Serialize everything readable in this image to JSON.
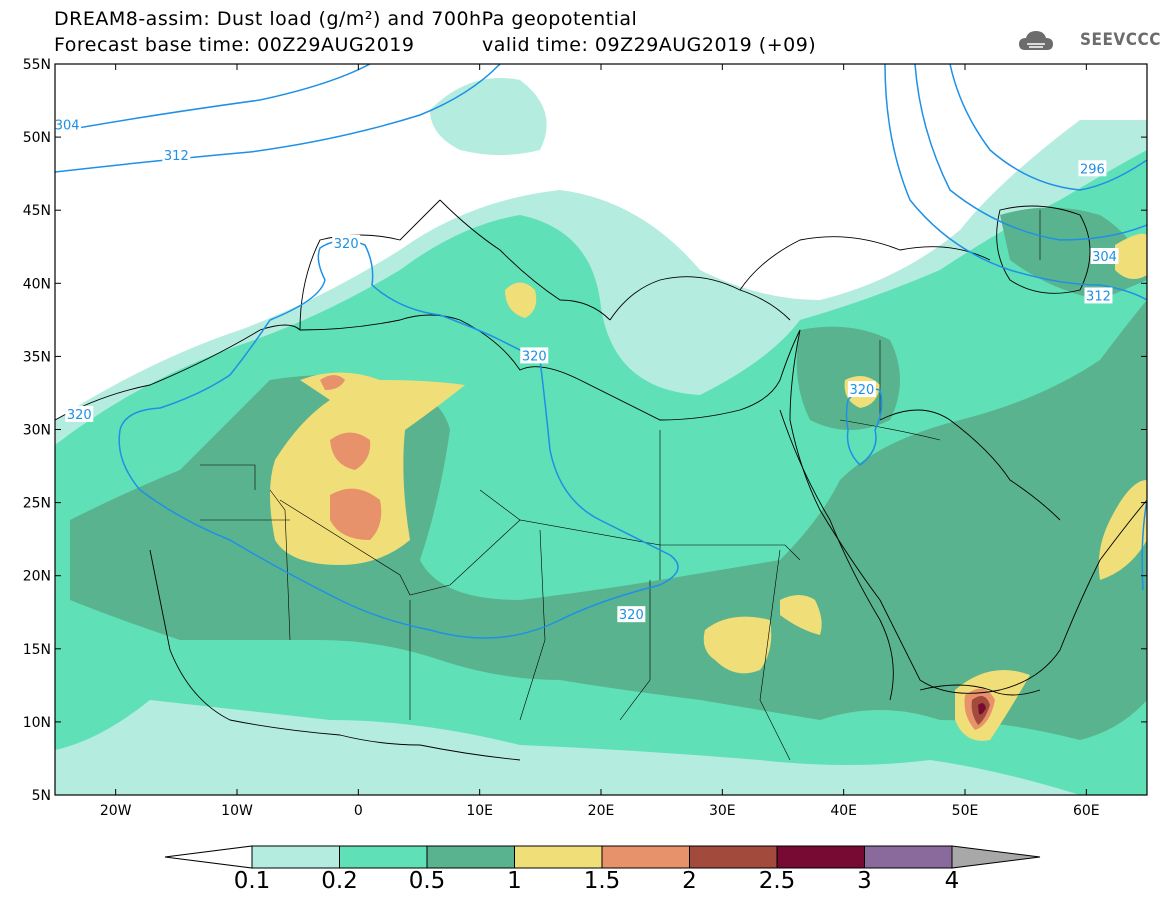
{
  "header": {
    "title_line1": "DREAM8-assim: Dust load (g/m²) and 700hPa geopotential",
    "title_line2_left": "Forecast base time: 00Z29AUG2019",
    "title_line2_right": "valid time: 09Z29AUG2019 (+09)",
    "logo_text": "SEEVCCC",
    "logo_icon": "cloud-icon"
  },
  "map": {
    "projection": "cylindrical-equidistant",
    "lon_range": [
      -25,
      65
    ],
    "lat_range": [
      5,
      55
    ],
    "lat_labels": [
      "55N",
      "50N",
      "45N",
      "40N",
      "35N",
      "30N",
      "25N",
      "20N",
      "15N",
      "10N",
      "5N"
    ],
    "lon_labels": [
      "20W",
      "10W",
      "0",
      "10E",
      "20E",
      "30E",
      "40E",
      "50E",
      "60E"
    ],
    "contour_color": "#1e90e6",
    "contour_labels": [
      {
        "text": "304",
        "lon": -24,
        "lat": 50.8
      },
      {
        "text": "312",
        "lon": -15,
        "lat": 48.7
      },
      {
        "text": "320",
        "lon": -1,
        "lat": 42.7
      },
      {
        "text": "320",
        "lon": 14.5,
        "lat": 35
      },
      {
        "text": "320",
        "lon": -23,
        "lat": 31
      },
      {
        "text": "320",
        "lon": 22.5,
        "lat": 17.3
      },
      {
        "text": "320",
        "lon": 41.5,
        "lat": 32.7
      },
      {
        "text": "296",
        "lon": 60.5,
        "lat": 47.8
      },
      {
        "text": "304",
        "lon": 61.5,
        "lat": 41.8
      },
      {
        "text": "312",
        "lon": 61,
        "lat": 39.1
      }
    ]
  },
  "colorbar": {
    "labels": [
      "0.1",
      "0.2",
      "0.5",
      "1",
      "1.5",
      "2",
      "2.5",
      "3",
      "4"
    ],
    "colors": [
      "#ffffff",
      "#b4ecdf",
      "#5fe0b6",
      "#5ab38f",
      "#f0df78",
      "#e8926c",
      "#a24a3b",
      "#760a32",
      "#8a6a9c",
      "#a8a8a8"
    ]
  }
}
